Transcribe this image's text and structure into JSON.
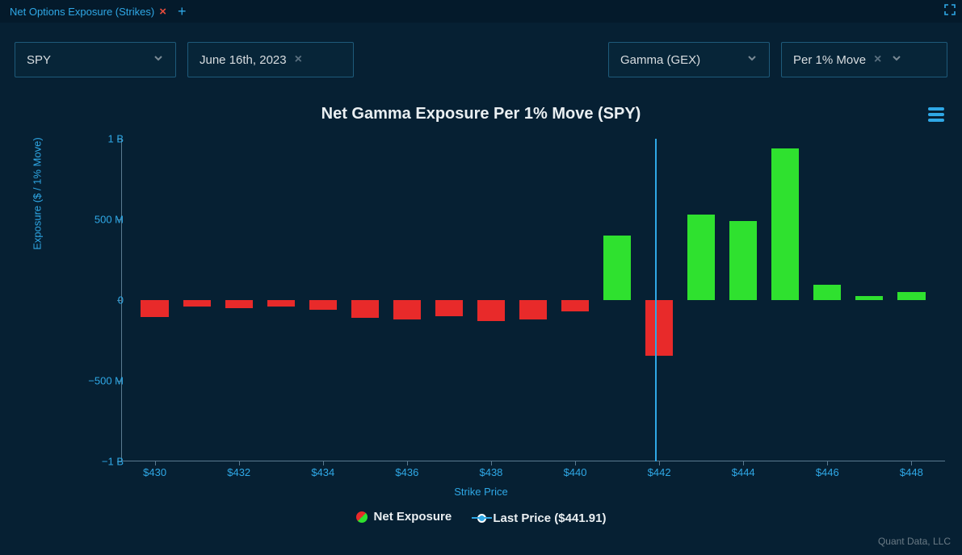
{
  "tab": {
    "title": "Net Options Exposure (Strikes)"
  },
  "controls": {
    "ticker": "SPY",
    "date": "June 16th, 2023",
    "metric": "Gamma (GEX)",
    "unit": "Per 1% Move"
  },
  "chart": {
    "type": "bar",
    "title": "Net Gamma Exposure Per 1% Move (SPY)",
    "ylabel": "Exposure ($ / 1% Move)",
    "xlabel": "Strike Price",
    "title_fontsize": 20,
    "label_fontsize": 13,
    "tick_fontsize": 13,
    "background_color": "#062033",
    "ylim": [
      -1000000000,
      1000000000
    ],
    "yticks": [
      {
        "v": 1000000000,
        "label": "1 B"
      },
      {
        "v": 500000000,
        "label": "500 M"
      },
      {
        "v": 0,
        "label": "0"
      },
      {
        "v": -500000000,
        "label": "−500 M"
      },
      {
        "v": -1000000000,
        "label": "−1 B"
      }
    ],
    "xlim": [
      429.2,
      448.8
    ],
    "xticks": [
      {
        "v": 430,
        "label": "$430"
      },
      {
        "v": 432,
        "label": "$432"
      },
      {
        "v": 434,
        "label": "$434"
      },
      {
        "v": 436,
        "label": "$436"
      },
      {
        "v": 438,
        "label": "$438"
      },
      {
        "v": 440,
        "label": "$440"
      },
      {
        "v": 442,
        "label": "$442"
      },
      {
        "v": 444,
        "label": "$444"
      },
      {
        "v": 446,
        "label": "$446"
      },
      {
        "v": 448,
        "label": "$448"
      }
    ],
    "bar_width_strike": 0.66,
    "positive_color": "#2fe12f",
    "negative_color": "#e82a2a",
    "axis_color": "#5a7a90",
    "tick_color": "#2fa8e6",
    "last_price": 441.91,
    "last_price_line_color": "#2fa8e6",
    "series": [
      {
        "strike": 430,
        "value": -105000000
      },
      {
        "strike": 431,
        "value": -42000000
      },
      {
        "strike": 432,
        "value": -52000000
      },
      {
        "strike": 433,
        "value": -38000000
      },
      {
        "strike": 434,
        "value": -58000000
      },
      {
        "strike": 435,
        "value": -110000000
      },
      {
        "strike": 436,
        "value": -118000000
      },
      {
        "strike": 437,
        "value": -100000000
      },
      {
        "strike": 438,
        "value": -130000000
      },
      {
        "strike": 439,
        "value": -120000000
      },
      {
        "strike": 440,
        "value": -68000000
      },
      {
        "strike": 441,
        "value": 400000000
      },
      {
        "strike": 442,
        "value": -345000000
      },
      {
        "strike": 443,
        "value": 530000000
      },
      {
        "strike": 444,
        "value": 490000000
      },
      {
        "strike": 445,
        "value": 940000000
      },
      {
        "strike": 446,
        "value": 95000000
      },
      {
        "strike": 447,
        "value": 25000000
      },
      {
        "strike": 448,
        "value": 50000000
      }
    ]
  },
  "legend": {
    "net_exposure": "Net Exposure",
    "last_price_label": "Last Price ($441.91)",
    "swatch_gradient_top": "#e82a2a",
    "swatch_gradient_bottom": "#2fe12f"
  },
  "attribution": "Quant Data, LLC"
}
